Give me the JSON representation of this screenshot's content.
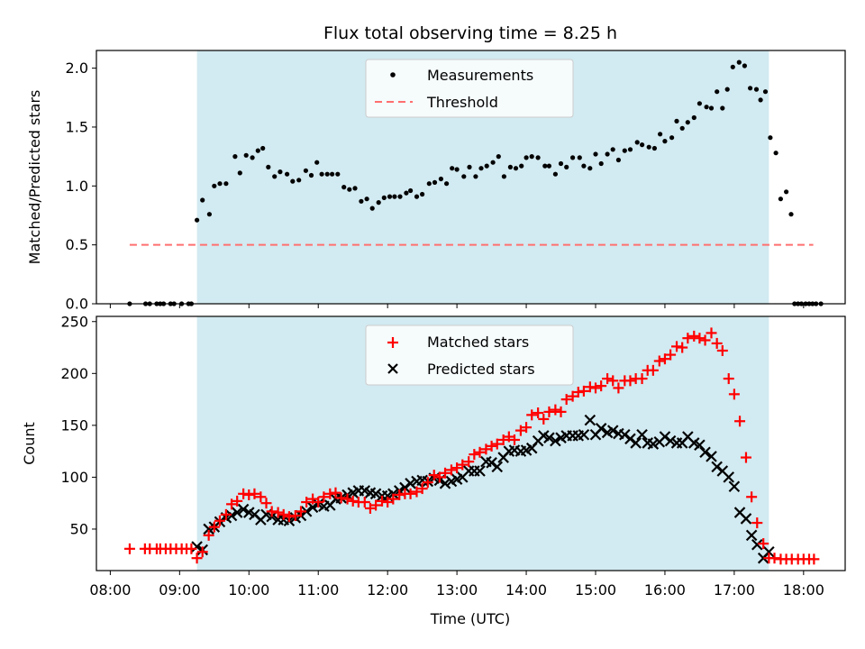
{
  "chart_data": [
    {
      "type": "scatter",
      "title": "Flux total observing time = 8.25 h",
      "xlabel": "",
      "ylabel": "Matched/Predicted stars",
      "ylim": [
        0,
        2.15
      ],
      "yticks": [
        0.0,
        0.5,
        1.0,
        1.5,
        2.0
      ],
      "ytick_labels": [
        "0.0",
        "0.5",
        "1.0",
        "1.5",
        "2.0"
      ],
      "x_range_hours": [
        7.8,
        18.6
      ],
      "legend_position": "top-center",
      "shaded_span_hours": [
        9.25,
        17.5
      ],
      "shade_color": "#add8e6",
      "series": [
        {
          "name": "Measurements",
          "marker": "dot",
          "color": "#000000",
          "points": [
            [
              8.28,
              0.0
            ],
            [
              8.51,
              0.0
            ],
            [
              8.57,
              0.0
            ],
            [
              8.67,
              0.0
            ],
            [
              8.72,
              0.0
            ],
            [
              8.77,
              0.0
            ],
            [
              8.87,
              0.0
            ],
            [
              8.92,
              0.0
            ],
            [
              9.03,
              0.0
            ],
            [
              9.13,
              0.0
            ],
            [
              9.17,
              0.0
            ],
            [
              9.25,
              0.71
            ],
            [
              9.33,
              0.88
            ],
            [
              9.43,
              0.76
            ],
            [
              9.5,
              1.0
            ],
            [
              9.58,
              1.02
            ],
            [
              9.67,
              1.02
            ],
            [
              9.8,
              1.25
            ],
            [
              9.87,
              1.11
            ],
            [
              9.96,
              1.26
            ],
            [
              10.05,
              1.24
            ],
            [
              10.13,
              1.3
            ],
            [
              10.2,
              1.32
            ],
            [
              10.28,
              1.16
            ],
            [
              10.37,
              1.08
            ],
            [
              10.45,
              1.12
            ],
            [
              10.55,
              1.1
            ],
            [
              10.63,
              1.04
            ],
            [
              10.72,
              1.05
            ],
            [
              10.82,
              1.13
            ],
            [
              10.9,
              1.09
            ],
            [
              10.98,
              1.2
            ],
            [
              11.05,
              1.1
            ],
            [
              11.13,
              1.1
            ],
            [
              11.2,
              1.1
            ],
            [
              11.28,
              1.1
            ],
            [
              11.37,
              0.99
            ],
            [
              11.45,
              0.97
            ],
            [
              11.53,
              0.98
            ],
            [
              11.62,
              0.87
            ],
            [
              11.7,
              0.89
            ],
            [
              11.78,
              0.81
            ],
            [
              11.87,
              0.86
            ],
            [
              11.95,
              0.9
            ],
            [
              12.03,
              0.91
            ],
            [
              12.1,
              0.91
            ],
            [
              12.18,
              0.91
            ],
            [
              12.27,
              0.94
            ],
            [
              12.33,
              0.96
            ],
            [
              12.42,
              0.91
            ],
            [
              12.5,
              0.93
            ],
            [
              12.6,
              1.02
            ],
            [
              12.68,
              1.03
            ],
            [
              12.77,
              1.06
            ],
            [
              12.85,
              1.02
            ],
            [
              12.93,
              1.15
            ],
            [
              13.0,
              1.14
            ],
            [
              13.1,
              1.08
            ],
            [
              13.18,
              1.16
            ],
            [
              13.27,
              1.08
            ],
            [
              13.35,
              1.15
            ],
            [
              13.43,
              1.17
            ],
            [
              13.52,
              1.2
            ],
            [
              13.6,
              1.25
            ],
            [
              13.68,
              1.08
            ],
            [
              13.77,
              1.16
            ],
            [
              13.85,
              1.15
            ],
            [
              13.93,
              1.17
            ],
            [
              14.0,
              1.24
            ],
            [
              14.08,
              1.25
            ],
            [
              14.17,
              1.24
            ],
            [
              14.27,
              1.17
            ],
            [
              14.33,
              1.17
            ],
            [
              14.42,
              1.1
            ],
            [
              14.5,
              1.19
            ],
            [
              14.58,
              1.16
            ],
            [
              14.67,
              1.24
            ],
            [
              14.77,
              1.24
            ],
            [
              14.83,
              1.17
            ],
            [
              14.92,
              1.15
            ],
            [
              15.0,
              1.27
            ],
            [
              15.08,
              1.19
            ],
            [
              15.17,
              1.27
            ],
            [
              15.25,
              1.31
            ],
            [
              15.33,
              1.22
            ],
            [
              15.42,
              1.3
            ],
            [
              15.5,
              1.31
            ],
            [
              15.6,
              1.37
            ],
            [
              15.67,
              1.35
            ],
            [
              15.77,
              1.33
            ],
            [
              15.85,
              1.32
            ],
            [
              15.93,
              1.44
            ],
            [
              16.0,
              1.38
            ],
            [
              16.1,
              1.41
            ],
            [
              16.17,
              1.55
            ],
            [
              16.25,
              1.49
            ],
            [
              16.33,
              1.54
            ],
            [
              16.42,
              1.58
            ],
            [
              16.5,
              1.7
            ],
            [
              16.6,
              1.67
            ],
            [
              16.67,
              1.66
            ],
            [
              16.75,
              1.8
            ],
            [
              16.83,
              1.66
            ],
            [
              16.9,
              1.82
            ],
            [
              16.98,
              2.01
            ],
            [
              17.07,
              2.05
            ],
            [
              17.15,
              2.02
            ],
            [
              17.23,
              1.83
            ],
            [
              17.32,
              1.82
            ],
            [
              17.38,
              1.73
            ],
            [
              17.45,
              1.8
            ],
            [
              17.52,
              1.41
            ],
            [
              17.6,
              1.28
            ],
            [
              17.67,
              0.89
            ],
            [
              17.75,
              0.95
            ],
            [
              17.82,
              0.76
            ],
            [
              17.87,
              0.0
            ],
            [
              17.92,
              0.0
            ],
            [
              17.97,
              0.0
            ],
            [
              18.03,
              0.0
            ],
            [
              18.08,
              0.0
            ],
            [
              18.13,
              0.0
            ],
            [
              18.18,
              0.0
            ],
            [
              18.25,
              0.0
            ]
          ]
        },
        {
          "name": "Threshold",
          "marker": "dashed-line",
          "color": "#ff6f6f",
          "x": [
            8.28,
            18.14
          ],
          "y": [
            0.5,
            0.5
          ]
        }
      ]
    },
    {
      "type": "scatter",
      "title": "",
      "xlabel": "Time (UTC)",
      "ylabel": "Count",
      "ylim": [
        10,
        255
      ],
      "yticks": [
        50,
        100,
        150,
        200,
        250
      ],
      "ytick_labels": [
        "50",
        "100",
        "150",
        "200",
        "250"
      ],
      "x_range_hours": [
        7.8,
        18.6
      ],
      "xticks_hours": [
        8,
        9,
        10,
        11,
        12,
        13,
        14,
        15,
        16,
        17,
        18
      ],
      "xtick_labels": [
        "08:00",
        "09:00",
        "10:00",
        "11:00",
        "12:00",
        "13:00",
        "14:00",
        "15:00",
        "16:00",
        "17:00",
        "18:00"
      ],
      "legend_position": "top-center",
      "shaded_span_hours": [
        9.25,
        17.5
      ],
      "shade_color": "#add8e6",
      "series": [
        {
          "name": "Matched stars",
          "marker": "plus",
          "color": "#ff0000",
          "x": [
            8.28,
            8.5,
            8.57,
            8.67,
            8.72,
            8.8,
            8.87,
            8.95,
            9.03,
            9.1,
            9.17,
            9.25,
            9.33,
            9.42,
            9.5,
            9.58,
            9.67,
            9.75,
            9.83,
            9.92,
            10.0,
            10.08,
            10.17,
            10.25,
            10.33,
            10.42,
            10.5,
            10.58,
            10.67,
            10.75,
            10.83,
            10.92,
            11.0,
            11.08,
            11.17,
            11.25,
            11.33,
            11.42,
            11.5,
            11.58,
            11.67,
            11.75,
            11.83,
            11.92,
            12.0,
            12.08,
            12.17,
            12.25,
            12.33,
            12.42,
            12.5,
            12.58,
            12.67,
            12.75,
            12.83,
            12.92,
            13.0,
            13.08,
            13.17,
            13.25,
            13.33,
            13.42,
            13.5,
            13.58,
            13.67,
            13.75,
            13.83,
            13.92,
            14.0,
            14.08,
            14.17,
            14.25,
            14.33,
            14.42,
            14.5,
            14.58,
            14.67,
            14.75,
            14.83,
            14.92,
            15.0,
            15.08,
            15.17,
            15.25,
            15.33,
            15.42,
            15.5,
            15.58,
            15.67,
            15.75,
            15.83,
            15.92,
            16.0,
            16.08,
            16.17,
            16.25,
            16.33,
            16.42,
            16.5,
            16.58,
            16.67,
            16.75,
            16.83,
            16.92,
            17.0,
            17.08,
            17.17,
            17.25,
            17.33,
            17.42,
            17.5,
            17.58,
            17.67,
            17.75,
            17.83,
            17.92,
            18.0,
            18.08,
            18.15
          ],
          "y": [
            31,
            31,
            31,
            31,
            31,
            31,
            31,
            31,
            31,
            31,
            31,
            22,
            28,
            44,
            52,
            58,
            64,
            74,
            77,
            84,
            83,
            84,
            81,
            75,
            67,
            66,
            64,
            62,
            63,
            67,
            76,
            79,
            76,
            81,
            84,
            85,
            80,
            79,
            77,
            76,
            76,
            70,
            73,
            77,
            76,
            79,
            83,
            84,
            84,
            86,
            89,
            95,
            102,
            100,
            104,
            107,
            109,
            112,
            115,
            122,
            124,
            127,
            130,
            132,
            136,
            139,
            136,
            145,
            148,
            160,
            162,
            156,
            163,
            165,
            163,
            175,
            178,
            182,
            183,
            187,
            186,
            188,
            195,
            193,
            186,
            193,
            193,
            195,
            195,
            203,
            203,
            212,
            214,
            218,
            226,
            225,
            234,
            236,
            234,
            232,
            239,
            229,
            222,
            195,
            180,
            154,
            119,
            81,
            56,
            36,
            22,
            22,
            21,
            21,
            21,
            21,
            21,
            21,
            21
          ]
        },
        {
          "name": "Predicted stars",
          "marker": "x",
          "color": "#000000",
          "x": [
            9.25,
            9.33,
            9.42,
            9.5,
            9.58,
            9.67,
            9.75,
            9.83,
            9.92,
            10.0,
            10.08,
            10.17,
            10.25,
            10.33,
            10.42,
            10.5,
            10.58,
            10.67,
            10.75,
            10.83,
            10.92,
            11.0,
            11.08,
            11.17,
            11.25,
            11.33,
            11.42,
            11.5,
            11.58,
            11.67,
            11.75,
            11.83,
            11.92,
            12.0,
            12.08,
            12.17,
            12.25,
            12.33,
            12.42,
            12.5,
            12.58,
            12.67,
            12.75,
            12.83,
            12.92,
            13.0,
            13.08,
            13.17,
            13.25,
            13.33,
            13.42,
            13.5,
            13.58,
            13.67,
            13.75,
            13.83,
            13.92,
            14.0,
            14.08,
            14.17,
            14.25,
            14.33,
            14.42,
            14.5,
            14.58,
            14.67,
            14.75,
            14.83,
            14.92,
            15.0,
            15.08,
            15.17,
            15.25,
            15.33,
            15.42,
            15.5,
            15.58,
            15.67,
            15.75,
            15.83,
            15.92,
            16.0,
            16.08,
            16.17,
            16.25,
            16.33,
            16.42,
            16.5,
            16.58,
            16.67,
            16.75,
            16.83,
            16.92,
            17.0,
            17.08,
            17.17,
            17.25,
            17.33,
            17.42,
            17.5
          ],
          "y": [
            33,
            30,
            50,
            52,
            57,
            61,
            63,
            66,
            69,
            66,
            64,
            59,
            64,
            62,
            59,
            59,
            58,
            61,
            63,
            67,
            71,
            74,
            72,
            73,
            79,
            80,
            83,
            85,
            87,
            87,
            85,
            84,
            82,
            82,
            84,
            87,
            90,
            94,
            96,
            97,
            96,
            99,
            97,
            94,
            96,
            98,
            100,
            106,
            106,
            106,
            115,
            114,
            110,
            119,
            125,
            126,
            125,
            126,
            128,
            135,
            140,
            138,
            135,
            138,
            140,
            140,
            140,
            141,
            155,
            141,
            147,
            143,
            145,
            142,
            141,
            137,
            133,
            141,
            133,
            132,
            134,
            139,
            135,
            133,
            133,
            139,
            133,
            131,
            124,
            120,
            110,
            106,
            100,
            91,
            66,
            60,
            44,
            35,
            22,
            28
          ]
        }
      ]
    }
  ]
}
